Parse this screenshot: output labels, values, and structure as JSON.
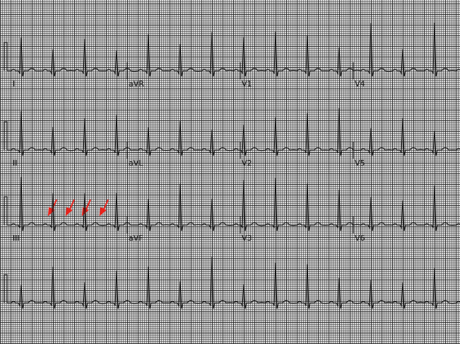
{
  "leads": {
    "rows": [
      [
        "I",
        "aVR",
        "V1",
        "V4"
      ],
      [
        "II",
        "aVL",
        "V2",
        "V5"
      ],
      [
        "III",
        "aVF",
        "V3",
        "V6"
      ]
    ]
  }
}
